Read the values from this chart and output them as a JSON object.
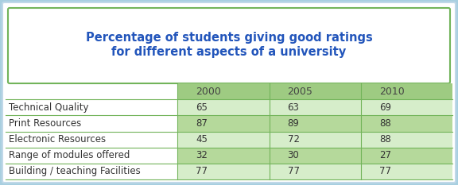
{
  "title_line1": "Percentage of students giving good ratings",
  "title_line2": "for different aspects of a university",
  "title_color": "#2255bb",
  "columns": [
    "2000",
    "2005",
    "2010"
  ],
  "rows": [
    "Technical Quality",
    "Print Resources",
    "Electronic Resources",
    "Range of modules offered",
    "Building / teaching Facilities"
  ],
  "values": [
    [
      65,
      63,
      69
    ],
    [
      87,
      89,
      88
    ],
    [
      45,
      72,
      88
    ],
    [
      32,
      30,
      27
    ],
    [
      77,
      77,
      77
    ]
  ],
  "header_bg": "#9ecb82",
  "row_bg_dark": "#b5d99b",
  "row_bg_light": "#d6edca",
  "label_col_bg": "#ffffff",
  "outer_bg": "#a8cfe0",
  "outer_border_color": "#a8cfe0",
  "inner_border_color": "#72b45a",
  "title_box_bg": "#ffffff",
  "cell_text_color": "#333333",
  "header_text_color": "#444444",
  "figsize": [
    5.76,
    2.33
  ],
  "dpi": 100
}
